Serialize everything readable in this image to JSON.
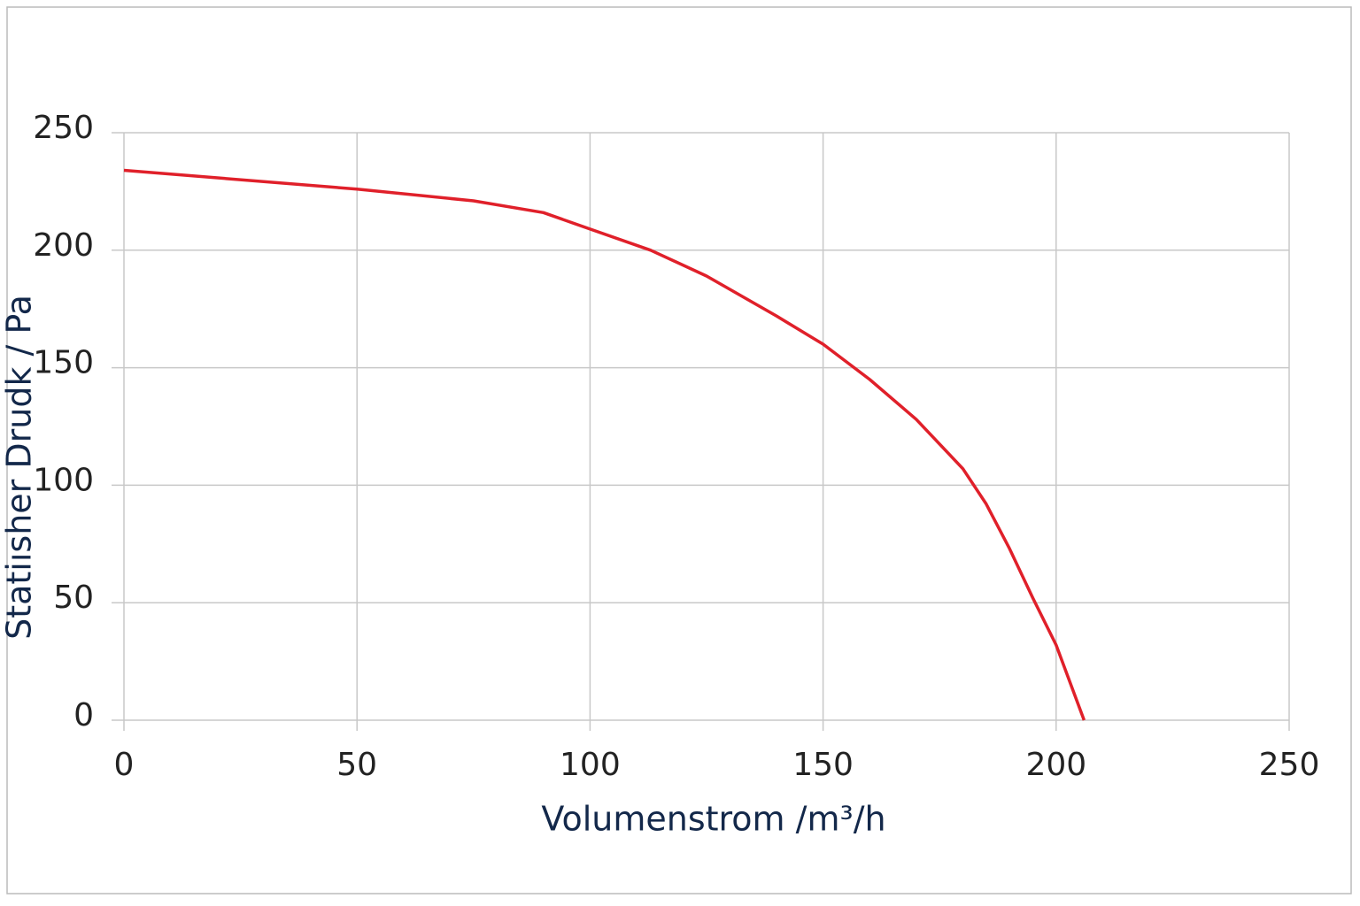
{
  "chart_data": {
    "type": "line",
    "x_label": "Volumenstrom /m³/h",
    "y_label": "Statiısher Drudk / Pa",
    "xlim": [
      0,
      250
    ],
    "xticks": [
      0,
      50,
      100,
      150,
      200,
      250
    ],
    "ylim": [
      0,
      250
    ],
    "yticks": [
      0,
      50,
      100,
      150,
      200,
      250
    ],
    "grid": true,
    "series": [
      {
        "color": "#e0202a",
        "x": [
          0,
          50,
          75,
          90,
          100,
          113,
          125,
          140,
          150,
          160,
          170,
          180,
          185,
          190,
          195,
          200,
          206
        ],
        "values": [
          234,
          226,
          221,
          216,
          209,
          200,
          189,
          172,
          160,
          145,
          128,
          107,
          92,
          73,
          52,
          32,
          0
        ]
      }
    ]
  }
}
